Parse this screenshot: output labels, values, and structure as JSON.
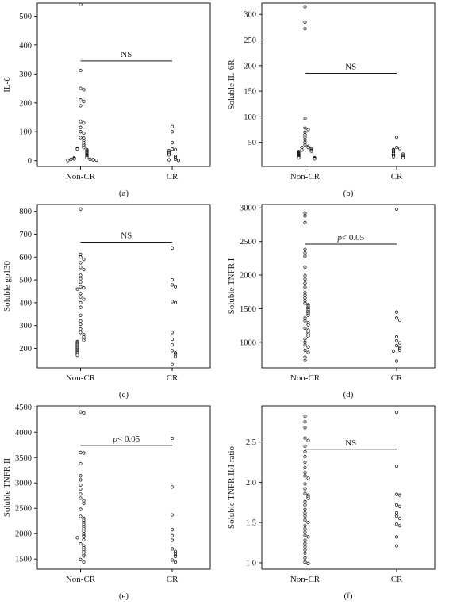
{
  "chart_data": [
    {
      "type": "scatter",
      "caption": "(a)",
      "ylabel": "IL-6",
      "categories": [
        "Non-CR",
        "CR"
      ],
      "ylim": [
        -20,
        545
      ],
      "yticks": [
        0,
        100,
        200,
        300,
        400,
        500
      ],
      "annotation": "NS",
      "annotation_p": "",
      "annotation_rest": "",
      "annotation_y": 345,
      "series": [
        {
          "category": "Non-CR",
          "values": [
            540,
            312,
            250,
            245,
            210,
            205,
            190,
            135,
            130,
            115,
            100,
            95,
            80,
            78,
            70,
            62,
            55,
            50,
            45,
            42,
            40,
            38,
            35,
            32,
            30,
            28,
            25,
            22,
            20,
            18,
            15,
            12,
            10,
            10,
            8,
            6,
            5,
            5,
            4,
            3,
            2,
            2,
            1
          ]
        },
        {
          "category": "CR",
          "values": [
            118,
            100,
            62,
            40,
            38,
            35,
            30,
            28,
            25,
            20,
            15,
            10,
            5,
            3,
            2,
            1
          ]
        }
      ]
    },
    {
      "type": "scatter",
      "caption": "(b)",
      "ylabel": "Soluble IL-6R",
      "categories": [
        "Non-CR",
        "CR"
      ],
      "ylim": [
        3,
        322
      ],
      "yticks": [
        50,
        100,
        150,
        200,
        250,
        300
      ],
      "annotation": "NS",
      "annotation_p": "",
      "annotation_rest": "",
      "annotation_y": 185,
      "series": [
        {
          "category": "Non-CR",
          "values": [
            315,
            285,
            272,
            97,
            78,
            75,
            70,
            65,
            60,
            55,
            50,
            45,
            42,
            40,
            40,
            38,
            36,
            35,
            34,
            33,
            32,
            31,
            30,
            29,
            28,
            27,
            26,
            25,
            24,
            23,
            22,
            21,
            20,
            20,
            19,
            18
          ]
        },
        {
          "category": "CR",
          "values": [
            60,
            40,
            38,
            36,
            35,
            33,
            31,
            30,
            28,
            27,
            25,
            24,
            22,
            21,
            20
          ]
        }
      ]
    },
    {
      "type": "scatter",
      "caption": "(c)",
      "ylabel": "Soluble gp130",
      "categories": [
        "Non-CR",
        "CR"
      ],
      "ylim": [
        115,
        830
      ],
      "yticks": [
        200,
        300,
        400,
        500,
        600,
        700,
        800
      ],
      "annotation": "NS",
      "annotation_p": "",
      "annotation_rest": "",
      "annotation_y": 665,
      "series": [
        {
          "category": "Non-CR",
          "values": [
            810,
            612,
            600,
            590,
            575,
            555,
            545,
            520,
            505,
            490,
            470,
            465,
            460,
            440,
            425,
            415,
            400,
            380,
            345,
            320,
            305,
            285,
            270,
            260,
            250,
            240,
            235,
            230,
            225,
            220,
            215,
            210,
            205,
            200,
            195,
            190,
            185,
            180,
            175,
            170
          ]
        },
        {
          "category": "CR",
          "values": [
            640,
            500,
            478,
            470,
            405,
            400,
            270,
            240,
            215,
            190,
            180,
            175,
            165,
            130
          ]
        }
      ]
    },
    {
      "type": "scatter",
      "caption": "(d)",
      "ylabel": "Soluble TNFR I",
      "categories": [
        "Non-CR",
        "CR"
      ],
      "ylim": [
        620,
        3050
      ],
      "yticks": [
        1000,
        1500,
        2000,
        2500,
        3000
      ],
      "annotation": "",
      "annotation_p": "p",
      "annotation_rest": "< 0.05",
      "annotation_y": 2460,
      "series": [
        {
          "category": "Non-CR",
          "values": [
            2920,
            2880,
            2780,
            2380,
            2330,
            2280,
            2120,
            1990,
            1940,
            1880,
            1820,
            1740,
            1700,
            1660,
            1620,
            1580,
            1560,
            1540,
            1520,
            1500,
            1480,
            1460,
            1440,
            1420,
            1400,
            1360,
            1320,
            1290,
            1260,
            1210,
            1180,
            1150,
            1120,
            1090,
            1050,
            1000,
            960,
            930,
            880,
            850,
            780,
            730
          ]
        },
        {
          "category": "CR",
          "values": [
            2980,
            1450,
            1360,
            1330,
            1080,
            1020,
            990,
            950,
            920,
            900,
            880,
            870,
            720
          ]
        }
      ]
    },
    {
      "type": "scatter",
      "caption": "(e)",
      "ylabel": "Soluble TNFR II",
      "categories": [
        "Non-CR",
        "CR"
      ],
      "ylim": [
        1300,
        4520
      ],
      "yticks": [
        1500,
        2000,
        2500,
        3000,
        3500,
        4000,
        4500
      ],
      "annotation": "",
      "annotation_p": "p",
      "annotation_rest": "< 0.05",
      "annotation_y": 3740,
      "series": [
        {
          "category": "Non-CR",
          "values": [
            4400,
            4380,
            3600,
            3590,
            3380,
            3140,
            3060,
            2960,
            2880,
            2780,
            2700,
            2650,
            2600,
            2480,
            2340,
            2300,
            2260,
            2220,
            2180,
            2140,
            2100,
            2050,
            2000,
            1960,
            1940,
            1920,
            1880,
            1800,
            1760,
            1720,
            1680,
            1640,
            1590,
            1560,
            1490,
            1440
          ]
        },
        {
          "category": "CR",
          "values": [
            3880,
            2920,
            2370,
            2080,
            1960,
            1870,
            1700,
            1650,
            1610,
            1570,
            1550,
            1480,
            1440
          ]
        }
      ]
    },
    {
      "type": "scatter",
      "caption": "(f)",
      "ylabel": "Soluble TNFR II/I ratio",
      "categories": [
        "Non-CR",
        "CR"
      ],
      "ylim": [
        0.92,
        2.95
      ],
      "yticks": [
        1.0,
        1.5,
        2.0,
        2.5
      ],
      "annotation": "NS",
      "annotation_p": "",
      "annotation_rest": "",
      "annotation_y": 2.41,
      "series": [
        {
          "category": "Non-CR",
          "values": [
            2.82,
            2.75,
            2.68,
            2.55,
            2.52,
            2.45,
            2.38,
            2.32,
            2.25,
            2.18,
            2.12,
            2.08,
            2.05,
            1.98,
            1.92,
            1.86,
            1.84,
            1.82,
            1.8,
            1.76,
            1.72,
            1.66,
            1.62,
            1.58,
            1.53,
            1.5,
            1.46,
            1.42,
            1.38,
            1.34,
            1.32,
            1.28,
            1.24,
            1.2,
            1.16,
            1.12,
            1.06,
            1.01,
            0.99
          ]
        },
        {
          "category": "CR",
          "values": [
            2.87,
            2.2,
            1.85,
            1.84,
            1.72,
            1.7,
            1.62,
            1.58,
            1.55,
            1.48,
            1.46,
            1.32,
            1.21
          ]
        }
      ]
    }
  ]
}
